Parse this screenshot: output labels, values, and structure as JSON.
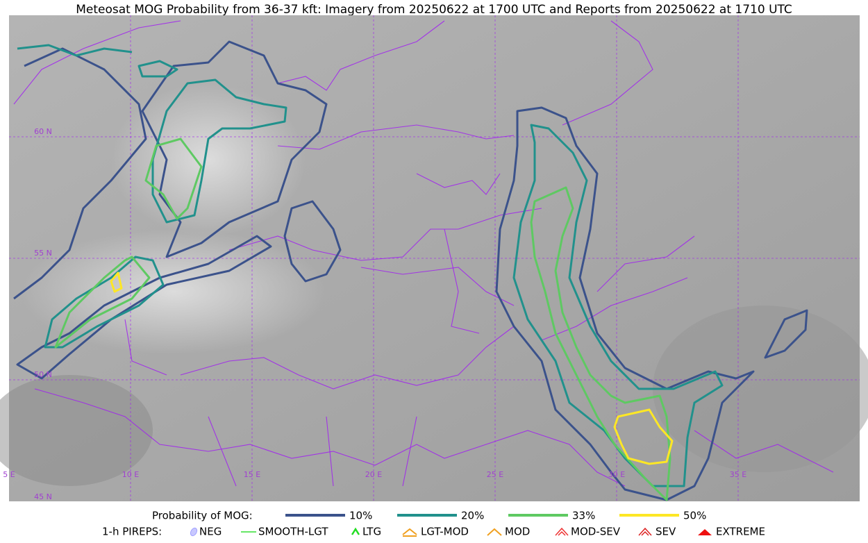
{
  "header": {
    "title": "Meteosat MOG Probability from 36-37 kft: Imagery from 20250622 at 1700 UTC and Reports from 20250622 at 1710 UTC"
  },
  "map": {
    "lon_labels": [
      "5 E",
      "10 E",
      "15 E",
      "20 E",
      "25 E",
      "30 E",
      "35 E"
    ],
    "lat_labels": [
      "60 N",
      "55 N",
      "50 N",
      "45 N"
    ]
  },
  "legend": {
    "probability": {
      "label": "Probability of MOG:",
      "items": [
        {
          "label": "10%",
          "color": "#3b528b"
        },
        {
          "label": "20%",
          "color": "#21918c"
        },
        {
          "label": "33%",
          "color": "#5ec962"
        },
        {
          "label": "50%",
          "color": "#fde725"
        }
      ]
    },
    "pireps": {
      "label": "1-h PIREPS:",
      "items": [
        "NEG",
        "SMOOTH-LGT",
        "LTG",
        "LGT-MOD",
        "MOD",
        "MOD-SEV",
        "SEV",
        "EXTREME"
      ]
    }
  }
}
